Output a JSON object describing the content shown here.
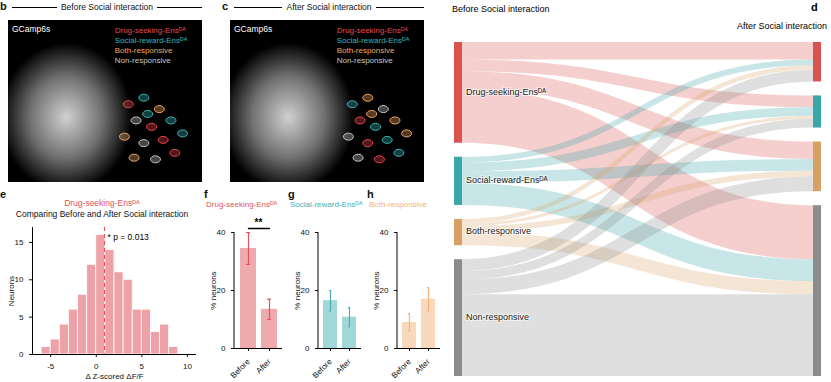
{
  "image_panels": [
    {
      "panel": "b",
      "title": "Before Social interaction",
      "channel": "GCamp6s",
      "legend": [
        {
          "name": "Drug-seeking-Ensᴰᴬ",
          "color": "#e8474f"
        },
        {
          "name": "Social-reward-Ensᴰᴬ",
          "color": "#3ab5b5"
        },
        {
          "name": "Both-responsive",
          "color": "#f0a860"
        },
        {
          "name": "Non-responsive",
          "color": "#c8c8c8"
        }
      ]
    },
    {
      "panel": "c",
      "title": "After Social interaction",
      "channel": "GCamp6s",
      "legend": [
        {
          "name": "Drug-seeking-Ensᴰᴬ",
          "color": "#e8474f"
        },
        {
          "name": "Social-reward-Ensᴰᴬ",
          "color": "#3ab5b5"
        },
        {
          "name": "Both-responsive",
          "color": "#f0a860"
        },
        {
          "name": "Non-responsive",
          "color": "#c8c8c8"
        }
      ]
    }
  ],
  "chart_data": [
    {
      "panel": "d",
      "type": "sankey",
      "source_label": "Before Social interaction",
      "target_label": "After Social interaction",
      "categories": [
        "Drug-seeking-Ensᴰᴬ",
        "Social-reward-Ensᴰᴬ",
        "Both-responsive",
        "Non-responsive"
      ],
      "colors": [
        "#d9534f",
        "#3aa6a8",
        "#d9a066",
        "#8c8c8c"
      ],
      "flows": [
        [
          6,
          4,
          6,
          18.5
        ],
        [
          2,
          3,
          4,
          7.5
        ],
        [
          1.5,
          1,
          2,
          4.5
        ],
        [
          4,
          3,
          5,
          28
        ]
      ]
    },
    {
      "panel": "e",
      "type": "histogram",
      "title": "Drug-seeking-Ensᴰᴬ",
      "subtitle": "Comparing Before and After Social interaction",
      "bins": [
        -6,
        -5,
        -4,
        -3,
        -2,
        -1,
        0,
        1,
        2,
        3,
        4,
        5,
        6,
        7,
        8,
        9
      ],
      "counts": [
        1,
        2,
        4,
        6,
        8,
        12,
        16,
        14,
        11,
        10,
        6,
        6,
        3,
        4,
        1
      ],
      "color": "#e0565e",
      "xlabel": "Δ Z-scored ΔF/F",
      "ylabel": "Neurons",
      "xlim": [
        -7,
        11
      ],
      "xticks": [
        -5,
        0,
        5,
        10
      ],
      "ylim": [
        0,
        17
      ],
      "yticks": [
        0,
        5,
        10,
        15
      ],
      "annotations": [
        {
          "x": 0.9,
          "text": "* p = 0.013",
          "color": "#e0565e"
        }
      ]
    },
    {
      "panel": "f",
      "type": "bar",
      "title": "Drug-seeking-Ensᴰᴬ",
      "categories": [
        "Before",
        "After"
      ],
      "values": [
        34.5,
        13.5
      ],
      "errors": [
        5.5,
        3.5
      ],
      "color": "#e0565e",
      "ylabel": "% neurons",
      "ylim": [
        0,
        40
      ],
      "yticks": [
        0,
        20,
        40
      ],
      "significance": {
        "label": "**"
      }
    },
    {
      "panel": "g",
      "type": "bar",
      "title": "Social-reward-Ensᴰᴬ",
      "categories": [
        "Before",
        "After"
      ],
      "values": [
        16.5,
        10.8
      ],
      "errors": [
        3.5,
        3.3
      ],
      "color": "#45b0b3",
      "ylabel": "% neurons",
      "ylim": [
        0,
        40
      ],
      "yticks": [
        0,
        20,
        40
      ]
    },
    {
      "panel": "h",
      "type": "bar",
      "title": "Both-responsive",
      "categories": [
        "Before",
        "After"
      ],
      "values": [
        9,
        17
      ],
      "errors": [
        3,
        4
      ],
      "color": "#f2b37a",
      "ylabel": "% neurons",
      "ylim": [
        0,
        40
      ],
      "yticks": [
        0,
        20,
        40
      ]
    }
  ]
}
